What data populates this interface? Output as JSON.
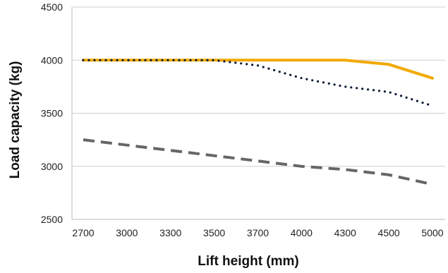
{
  "chart_data": {
    "type": "line",
    "title": "",
    "xlabel": "Lift height (mm)",
    "ylabel": "Load capacity (kg)",
    "categories": [
      "2700",
      "3000",
      "3300",
      "3500",
      "3700",
      "4000",
      "4300",
      "4500",
      "5000"
    ],
    "ylim": [
      2500,
      4500
    ],
    "yticks": [
      "2500",
      "3000",
      "3500",
      "4000",
      "4500"
    ],
    "grid": "horizontal",
    "legend": "none",
    "series": [
      {
        "style": "solid",
        "color": "#F2A900",
        "values": [
          4000,
          4000,
          4000,
          4000,
          4000,
          4000,
          4000,
          3960,
          3830
        ]
      },
      {
        "style": "dotted",
        "color": "#0B1A33",
        "values": [
          4000,
          4000,
          4000,
          4000,
          3950,
          3830,
          3750,
          3700,
          3570
        ]
      },
      {
        "style": "dashed",
        "color": "#666666",
        "values": [
          3250,
          3200,
          3150,
          3100,
          3050,
          3000,
          2970,
          2920,
          2830
        ]
      }
    ]
  }
}
